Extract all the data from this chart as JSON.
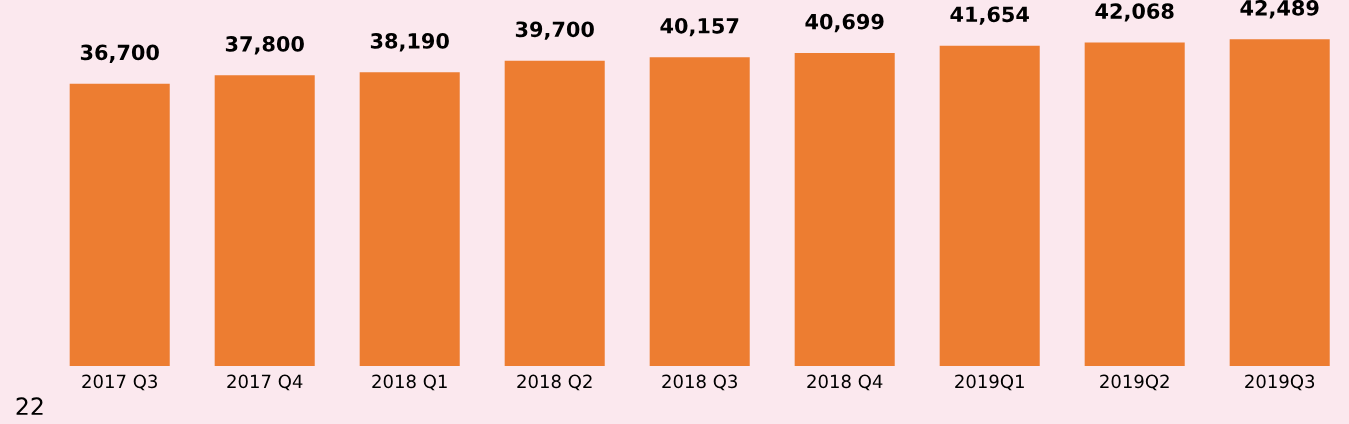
{
  "chart_data": {
    "type": "bar",
    "categories": [
      "2017 Q3",
      "2017 Q4",
      "2018 Q1",
      "2018 Q2",
      "2018 Q3",
      "2018 Q4",
      "2019Q1",
      "2019Q2",
      "2019Q3"
    ],
    "values": [
      36700,
      37800,
      38190,
      39700,
      40157,
      40699,
      41654,
      42068,
      42489
    ],
    "value_labels": [
      "36,700",
      "37,800",
      "38,190",
      "39,700",
      "40,157",
      "40,699",
      "41,654",
      "42,068",
      "42,489"
    ],
    "color": "#ed7d31",
    "tick_labels": "x",
    "grid": false,
    "legend": false,
    "annotations": [
      "22"
    ]
  }
}
